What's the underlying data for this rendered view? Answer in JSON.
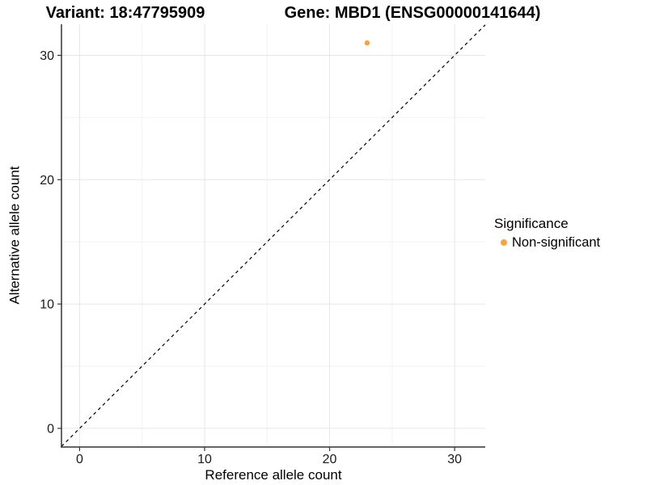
{
  "chart_data": {
    "type": "scatter",
    "title_left": "Variant: 18:47795909",
    "title_right": "Gene: MBD1 (ENSG00000141644)",
    "xlabel": "Reference allele count",
    "ylabel": "Alternative allele count",
    "x_ticks": [
      0,
      10,
      20,
      30
    ],
    "y_ticks": [
      0,
      10,
      20,
      30
    ],
    "x_minor_ticks": [
      5,
      15,
      25
    ],
    "y_minor_ticks": [
      5,
      15,
      25
    ],
    "xlim": [
      -1.45,
      32.45
    ],
    "ylim": [
      -1.5,
      32.5
    ],
    "grid": true,
    "points": [
      {
        "x": 23,
        "y": 31,
        "series": "Non-significant"
      }
    ],
    "reference_line": {
      "type": "identity",
      "slope": 1,
      "intercept": 0,
      "style": "dashed",
      "color": "#000000"
    },
    "legend": {
      "title": "Significance",
      "position": "right",
      "entries": [
        {
          "label": "Non-significant",
          "color": "#F9A242"
        }
      ]
    }
  },
  "colors": {
    "point": "#F9A242",
    "axis_line": "#333333",
    "tick": "#333333",
    "grid_major": "#E6E6E6",
    "grid_minor": "#F2F2F2",
    "background": "#FFFFFF",
    "text": "#000000"
  }
}
